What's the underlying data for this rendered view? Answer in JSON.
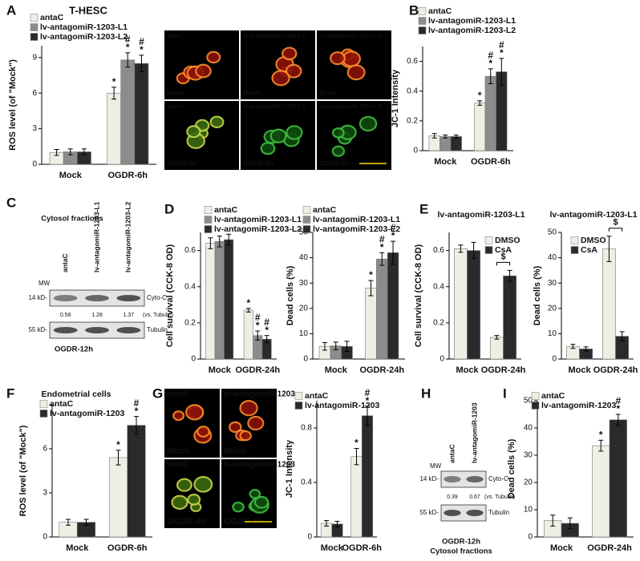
{
  "chart_data": [
    {
      "type": "bar",
      "panel": "A",
      "title": "T-HESC",
      "ylabel": "ROS level (of \"Mock\")",
      "categories": [
        "Mock",
        "OGDR-6h"
      ],
      "ylim": [
        0,
        10
      ],
      "yticks": [
        0,
        3,
        6,
        9
      ],
      "legend": "top",
      "series": [
        {
          "name": "antaC",
          "color": "#efeee4",
          "values": [
            1.0,
            6.0
          ],
          "errors": [
            0.25,
            0.5
          ],
          "marks": [
            null,
            [
              "*"
            ]
          ]
        },
        {
          "name": "lv-antagomiR-1203-L1",
          "color": "#8c8c8c",
          "values": [
            1.05,
            8.8
          ],
          "errors": [
            0.25,
            0.6
          ],
          "marks": [
            null,
            [
              "#",
              "*"
            ]
          ]
        },
        {
          "name": "lv-antagomiR-1203-L2",
          "color": "#2a2a2a",
          "values": [
            1.05,
            8.5
          ],
          "errors": [
            0.25,
            0.7
          ],
          "marks": [
            null,
            [
              "#",
              "*"
            ]
          ]
        }
      ]
    },
    {
      "type": "bar",
      "panel": "B",
      "ylabel": "JC-1 Intensity",
      "categories": [
        "Mock",
        "OGDR-6h"
      ],
      "ylim": [
        0,
        0.7
      ],
      "yticks": [
        0,
        0.2,
        0.4,
        0.6
      ],
      "legend": "top",
      "series": [
        {
          "name": "antaC",
          "color": "#efeee4",
          "values": [
            0.1,
            0.32
          ],
          "errors": [
            0.015,
            0.015
          ],
          "marks": [
            null,
            [
              "*"
            ]
          ]
        },
        {
          "name": "lv-antagomiR-1203-L1",
          "color": "#8c8c8c",
          "values": [
            0.095,
            0.5
          ],
          "errors": [
            0.01,
            0.05
          ],
          "marks": [
            null,
            [
              "#",
              "*"
            ]
          ]
        },
        {
          "name": "lv-antagomiR-1203-L2",
          "color": "#2a2a2a",
          "values": [
            0.095,
            0.53
          ],
          "errors": [
            0.01,
            0.09
          ],
          "marks": [
            null,
            [
              "#",
              "*"
            ]
          ]
        }
      ]
    },
    {
      "type": "bar",
      "panel": "D",
      "ylabel": "Cell survival (CCK-8 OD)",
      "categories": [
        "Mock",
        "OGDR-24h"
      ],
      "ylim": [
        0,
        0.7
      ],
      "yticks": [
        0,
        0.2,
        0.4,
        0.6
      ],
      "legend": "top",
      "series": [
        {
          "name": "antaC",
          "color": "#efeee4",
          "values": [
            0.64,
            0.27
          ],
          "errors": [
            0.03,
            0.01
          ],
          "marks": [
            null,
            [
              "*"
            ]
          ]
        },
        {
          "name": "lv-antagomiR-1203-L1",
          "color": "#8c8c8c",
          "values": [
            0.65,
            0.13
          ],
          "errors": [
            0.03,
            0.025
          ],
          "marks": [
            null,
            [
              "#",
              "*"
            ]
          ]
        },
        {
          "name": "lv-antagomiR-1203-L2",
          "color": "#2a2a2a",
          "values": [
            0.66,
            0.11
          ],
          "errors": [
            0.03,
            0.02
          ],
          "marks": [
            null,
            [
              "#",
              "*"
            ]
          ]
        }
      ]
    },
    {
      "type": "bar",
      "ylabel": "Dead cells (%)",
      "categories": [
        "Mock",
        "OGDR-24h"
      ],
      "ylim": [
        0,
        50
      ],
      "yticks": [
        0,
        10,
        20,
        30,
        40,
        50
      ],
      "legend": "top",
      "series": [
        {
          "name": "antaC",
          "color": "#efeee4",
          "values": [
            5,
            28
          ],
          "errors": [
            1.5,
            3
          ],
          "marks": [
            null,
            [
              "*"
            ]
          ]
        },
        {
          "name": "lv-antagomiR-1203-L1",
          "color": "#8c8c8c",
          "values": [
            5.2,
            39.5
          ],
          "errors": [
            1.5,
            2.5
          ],
          "marks": [
            null,
            [
              "#",
              "*"
            ]
          ]
        },
        {
          "name": "lv-antagomiR-1203-L2",
          "color": "#2a2a2a",
          "values": [
            5,
            42
          ],
          "errors": [
            2,
            4.5
          ],
          "marks": [
            null,
            [
              "#",
              "*"
            ]
          ]
        }
      ]
    },
    {
      "type": "bar",
      "panel": "E",
      "title": "lv-antagomiR-1203-L1",
      "ylabel": "Cell survival (CCK-8 OD)",
      "categories": [
        "Mock",
        "OGDR-24h"
      ],
      "ylim": [
        0,
        0.7
      ],
      "yticks": [
        0,
        0.2,
        0.4,
        0.6
      ],
      "legend": "inside",
      "bracket": {
        "category": 1,
        "label": "$"
      },
      "series": [
        {
          "name": "DMSO",
          "color": "#efeee4",
          "values": [
            0.61,
            0.12
          ],
          "errors": [
            0.02,
            0.01
          ],
          "marks": [
            null,
            null
          ]
        },
        {
          "name": "CsA",
          "color": "#2a2a2a",
          "values": [
            0.6,
            0.46
          ],
          "errors": [
            0.045,
            0.03
          ],
          "marks": [
            null,
            null
          ]
        }
      ]
    },
    {
      "type": "bar",
      "title": "lv-antagomiR-1203-L1",
      "ylabel": "Dead cells (%)",
      "categories": [
        "Mock",
        "OGDR-24h"
      ],
      "ylim": [
        0,
        50
      ],
      "yticks": [
        0,
        10,
        20,
        30,
        40,
        50
      ],
      "legend": "inside",
      "bracket": {
        "category": 1,
        "label": "$"
      },
      "series": [
        {
          "name": "DMSO",
          "color": "#efeee4",
          "values": [
            5,
            43.5
          ],
          "errors": [
            0.8,
            5
          ],
          "marks": [
            null,
            null
          ]
        },
        {
          "name": "CsA",
          "color": "#2a2a2a",
          "values": [
            4,
            9
          ],
          "errors": [
            0.8,
            1.8
          ],
          "marks": [
            null,
            null
          ]
        }
      ]
    },
    {
      "type": "bar",
      "panel": "F",
      "title": "Endometrial cells",
      "ylabel": "ROS level (of \"Mock\")",
      "categories": [
        "Mock",
        "OGDR-6h"
      ],
      "ylim": [
        0,
        9
      ],
      "yticks": [
        0,
        3,
        6,
        9
      ],
      "legend": "top",
      "series": [
        {
          "name": "antaC",
          "color": "#efeee4",
          "values": [
            1.0,
            5.4
          ],
          "errors": [
            0.2,
            0.5
          ],
          "marks": [
            null,
            [
              "*"
            ]
          ]
        },
        {
          "name": "lv-antagomiR-1203",
          "color": "#2a2a2a",
          "values": [
            1.0,
            7.6
          ],
          "errors": [
            0.2,
            0.6
          ],
          "marks": [
            null,
            [
              "#",
              "*"
            ]
          ]
        }
      ]
    },
    {
      "type": "bar",
      "ylabel": "JC-1 Intensity",
      "categories": [
        "Mock",
        "OGDR-6h"
      ],
      "ylim": [
        0,
        1.0
      ],
      "yticks": [
        0,
        0.4,
        0.8
      ],
      "legend": "top",
      "series": [
        {
          "name": "antaC",
          "color": "#efeee4",
          "values": [
            0.1,
            0.59
          ],
          "errors": [
            0.02,
            0.06
          ],
          "marks": [
            null,
            [
              "*"
            ]
          ]
        },
        {
          "name": "lv-antagomiR-1203",
          "color": "#2a2a2a",
          "values": [
            0.095,
            0.89
          ],
          "errors": [
            0.02,
            0.07
          ],
          "marks": [
            null,
            [
              "#",
              "*"
            ]
          ]
        }
      ]
    },
    {
      "type": "bar",
      "panel": "I",
      "ylabel": "Dead cells (%)",
      "categories": [
        "Mock",
        "OGDR-24h"
      ],
      "ylim": [
        0,
        50
      ],
      "yticks": [
        0,
        10,
        20,
        30,
        40,
        50
      ],
      "legend": "top",
      "series": [
        {
          "name": "antaC",
          "color": "#efeee4",
          "values": [
            6,
            33.5
          ],
          "errors": [
            2,
            2
          ],
          "marks": [
            null,
            [
              "*"
            ]
          ]
        },
        {
          "name": "lv-antagomiR-1203",
          "color": "#2a2a2a",
          "values": [
            5,
            43
          ],
          "errors": [
            2,
            2
          ],
          "marks": [
            null,
            [
              "#",
              "*"
            ]
          ]
        }
      ]
    }
  ],
  "micrographs": [
    {
      "columns": [
        "antaC",
        "lv-antagomiR-1203-L1",
        "lv-antagomiR-1203-L2"
      ],
      "rows": [
        "Mock",
        "OGDR-6h"
      ]
    },
    {
      "panel": "G",
      "columns": [
        "antaC",
        "lv-antagomiR-1203"
      ],
      "rows": [
        "Mock",
        "OGDR-6h"
      ]
    }
  ],
  "blots": [
    {
      "panel": "C",
      "title": "Cytosol fractions",
      "lanes": [
        "antaC",
        "lv-antagomiR-1203-L1",
        "lv-antagomiR-1203-L2"
      ],
      "mw": "MW",
      "bands": [
        {
          "marker": "14 kD-",
          "name": "Cyto-C"
        },
        {
          "marker": "55 kD-",
          "name": "Tubulin"
        }
      ],
      "ratios": [
        0.58,
        1.28,
        1.37
      ],
      "ratio_note": "(vs. Tubulin)",
      "condition": "OGDR-12h"
    },
    {
      "panel": "H",
      "title": "Cytosol fractions",
      "lanes": [
        "antaC",
        "lv-antagomiR-1203"
      ],
      "mw": "MW",
      "bands": [
        {
          "marker": "14 kD-",
          "name": "Cyto-C"
        },
        {
          "marker": "55 kD-",
          "name": "Tubulin"
        }
      ],
      "ratios": [
        0.39,
        0.67
      ],
      "ratio_note": "(vs. Tubulin)",
      "condition": "OGDR-12h"
    }
  ]
}
